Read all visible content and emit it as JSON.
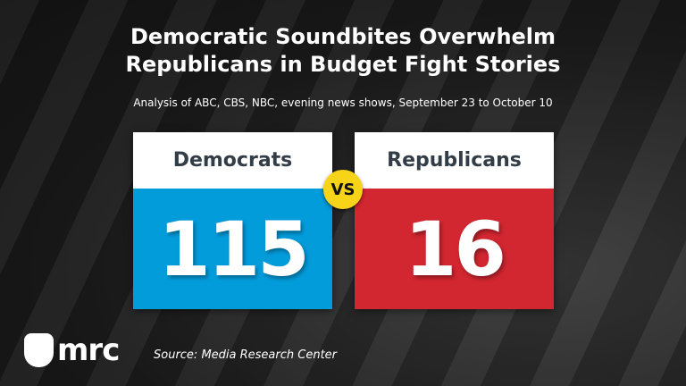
{
  "title": {
    "line1": "Democratic Soundbites Overwhelm",
    "line2": "Republicans in Budget Fight Stories"
  },
  "subtitle": "Analysis of ABC, CBS, NBC, evening news shows, September 23 to October 10",
  "democrats": {
    "label": "Democrats",
    "value": "115",
    "color": "#039cdb"
  },
  "republicans": {
    "label": "Republicans",
    "value": "16",
    "color": "#d22630"
  },
  "vs_label": "VS",
  "logo": {
    "text": "mrc",
    "icon": "bulldog-shield-icon"
  },
  "source": "Source: Media Research Center"
}
